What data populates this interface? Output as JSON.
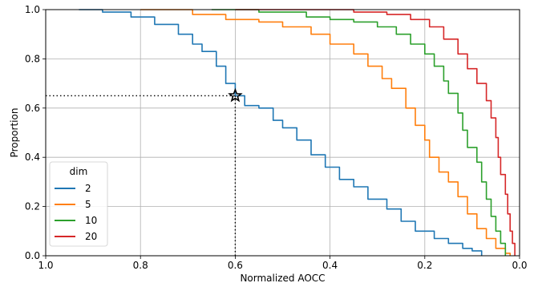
{
  "chart_data": {
    "type": "line",
    "xlabel": "Normalized AOCC",
    "ylabel": "Proportion",
    "xlim": [
      1.0,
      0.0
    ],
    "ylim": [
      0.0,
      1.0
    ],
    "x_inverted": true,
    "grid": true,
    "x_ticks": [
      "1.0",
      "0.8",
      "0.6",
      "0.4",
      "0.2",
      "0.0"
    ],
    "y_ticks": [
      "0.0",
      "0.2",
      "0.4",
      "0.6",
      "0.8",
      "1.0"
    ],
    "legend": {
      "title": "dim",
      "placement": "lower-left"
    },
    "series": [
      {
        "name": "2",
        "color": "#1f77b4",
        "points": [
          [
            0.93,
            1.0
          ],
          [
            0.88,
            0.99
          ],
          [
            0.82,
            0.97
          ],
          [
            0.77,
            0.94
          ],
          [
            0.72,
            0.9
          ],
          [
            0.69,
            0.86
          ],
          [
            0.67,
            0.83
          ],
          [
            0.64,
            0.77
          ],
          [
            0.62,
            0.7
          ],
          [
            0.6,
            0.65
          ],
          [
            0.58,
            0.61
          ],
          [
            0.55,
            0.6
          ],
          [
            0.52,
            0.55
          ],
          [
            0.5,
            0.52
          ],
          [
            0.47,
            0.47
          ],
          [
            0.44,
            0.41
          ],
          [
            0.41,
            0.36
          ],
          [
            0.38,
            0.31
          ],
          [
            0.35,
            0.28
          ],
          [
            0.32,
            0.23
          ],
          [
            0.28,
            0.19
          ],
          [
            0.25,
            0.14
          ],
          [
            0.22,
            0.1
          ],
          [
            0.18,
            0.07
          ],
          [
            0.15,
            0.05
          ],
          [
            0.12,
            0.03
          ],
          [
            0.1,
            0.02
          ],
          [
            0.08,
            0.0
          ]
        ]
      },
      {
        "name": "5",
        "color": "#ff7f0e",
        "points": [
          [
            0.8,
            1.0
          ],
          [
            0.73,
            1.0
          ],
          [
            0.69,
            0.98
          ],
          [
            0.62,
            0.96
          ],
          [
            0.55,
            0.95
          ],
          [
            0.5,
            0.93
          ],
          [
            0.44,
            0.9
          ],
          [
            0.4,
            0.86
          ],
          [
            0.35,
            0.82
          ],
          [
            0.32,
            0.77
          ],
          [
            0.29,
            0.72
          ],
          [
            0.27,
            0.68
          ],
          [
            0.24,
            0.6
          ],
          [
            0.22,
            0.53
          ],
          [
            0.2,
            0.47
          ],
          [
            0.19,
            0.4
          ],
          [
            0.17,
            0.34
          ],
          [
            0.15,
            0.3
          ],
          [
            0.13,
            0.24
          ],
          [
            0.11,
            0.17
          ],
          [
            0.09,
            0.11
          ],
          [
            0.07,
            0.07
          ],
          [
            0.05,
            0.03
          ],
          [
            0.03,
            0.01
          ],
          [
            0.02,
            0.0
          ]
        ]
      },
      {
        "name": "10",
        "color": "#2ca02c",
        "points": [
          [
            0.65,
            1.0
          ],
          [
            0.55,
            0.99
          ],
          [
            0.45,
            0.97
          ],
          [
            0.4,
            0.96
          ],
          [
            0.35,
            0.95
          ],
          [
            0.3,
            0.93
          ],
          [
            0.26,
            0.9
          ],
          [
            0.23,
            0.86
          ],
          [
            0.2,
            0.82
          ],
          [
            0.18,
            0.77
          ],
          [
            0.16,
            0.71
          ],
          [
            0.15,
            0.66
          ],
          [
            0.13,
            0.58
          ],
          [
            0.12,
            0.51
          ],
          [
            0.11,
            0.44
          ],
          [
            0.09,
            0.38
          ],
          [
            0.08,
            0.3
          ],
          [
            0.07,
            0.23
          ],
          [
            0.06,
            0.16
          ],
          [
            0.05,
            0.1
          ],
          [
            0.04,
            0.05
          ],
          [
            0.03,
            0.0
          ]
        ]
      },
      {
        "name": "20",
        "color": "#d62728",
        "points": [
          [
            0.6,
            1.0
          ],
          [
            0.45,
            1.0
          ],
          [
            0.35,
            0.99
          ],
          [
            0.28,
            0.98
          ],
          [
            0.23,
            0.96
          ],
          [
            0.19,
            0.93
          ],
          [
            0.16,
            0.88
          ],
          [
            0.13,
            0.82
          ],
          [
            0.11,
            0.76
          ],
          [
            0.09,
            0.7
          ],
          [
            0.07,
            0.63
          ],
          [
            0.06,
            0.56
          ],
          [
            0.05,
            0.48
          ],
          [
            0.045,
            0.4
          ],
          [
            0.04,
            0.33
          ],
          [
            0.03,
            0.25
          ],
          [
            0.025,
            0.17
          ],
          [
            0.02,
            0.1
          ],
          [
            0.015,
            0.05
          ],
          [
            0.01,
            0.0
          ]
        ]
      }
    ],
    "annotation": {
      "marker": "star",
      "x": 0.6,
      "y": 0.65,
      "guides": "dotted"
    }
  }
}
